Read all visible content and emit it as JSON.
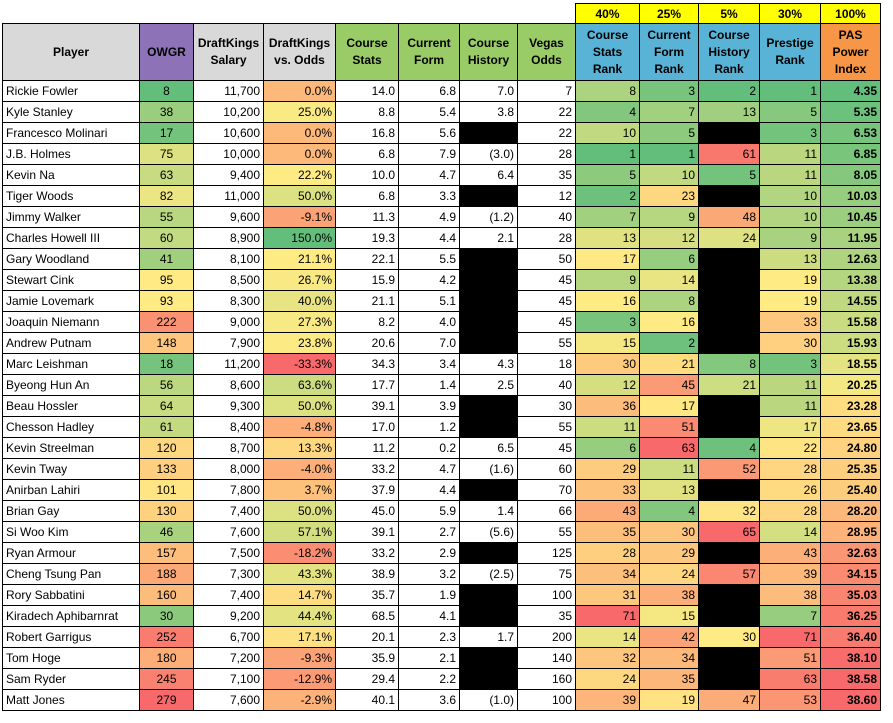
{
  "weights": [
    "40%",
    "25%",
    "5%",
    "30%",
    "100%"
  ],
  "headers": {
    "player": "Player",
    "owgr": "OWGR",
    "salary": "DraftKings Salary",
    "vs_odds": "DraftKings vs. Odds",
    "course_stats": "Course Stats",
    "current_form": "Current Form",
    "course_history": "Course History",
    "vegas_odds": "Vegas Odds",
    "course_stats_rank": "Course Stats Rank",
    "current_form_rank": "Current Form Rank",
    "course_history_rank": "Course History Rank",
    "prestige_rank": "Prestige Rank",
    "pas_index": "PAS Power Index"
  },
  "colors": {
    "green": "#63be7b",
    "yellow": "#ffeb84",
    "red": "#f8696b",
    "header_purple": "#8e72b8",
    "header_green": "#99cc66",
    "header_blue": "#59b3d6",
    "header_orange": "#f79646",
    "weight_yellow": "#ffff00"
  },
  "players": [
    {
      "name": "Rickie Fowler",
      "owgr": "8",
      "salary": "11,700",
      "vs_odds": "0.0%",
      "course_stats": "14.0",
      "current_form": "6.8",
      "course_history": "7.0",
      "vegas_odds": "7",
      "cs_rank": "8",
      "cf_rank": "3",
      "ch_rank": "2",
      "prestige_rank": "1",
      "pas": "4.35"
    },
    {
      "name": "Kyle Stanley",
      "owgr": "38",
      "salary": "10,200",
      "vs_odds": "25.0%",
      "course_stats": "8.8",
      "current_form": "5.4",
      "course_history": "3.8",
      "vegas_odds": "22",
      "cs_rank": "4",
      "cf_rank": "7",
      "ch_rank": "13",
      "prestige_rank": "5",
      "pas": "5.35"
    },
    {
      "name": "Francesco Molinari",
      "owgr": "17",
      "salary": "10,600",
      "vs_odds": "0.0%",
      "course_stats": "16.8",
      "current_form": "5.6",
      "course_history": "",
      "vegas_odds": "22",
      "cs_rank": "10",
      "cf_rank": "5",
      "ch_rank": "",
      "prestige_rank": "3",
      "pas": "6.53"
    },
    {
      "name": "J.B. Holmes",
      "owgr": "75",
      "salary": "10,000",
      "vs_odds": "0.0%",
      "course_stats": "6.8",
      "current_form": "7.9",
      "course_history": "(3.0)",
      "vegas_odds": "28",
      "cs_rank": "1",
      "cf_rank": "1",
      "ch_rank": "61",
      "prestige_rank": "11",
      "pas": "6.85"
    },
    {
      "name": "Kevin Na",
      "owgr": "63",
      "salary": "9,400",
      "vs_odds": "22.2%",
      "course_stats": "10.0",
      "current_form": "4.7",
      "course_history": "6.4",
      "vegas_odds": "35",
      "cs_rank": "5",
      "cf_rank": "10",
      "ch_rank": "5",
      "prestige_rank": "11",
      "pas": "8.05"
    },
    {
      "name": "Tiger Woods",
      "owgr": "82",
      "salary": "11,000",
      "vs_odds": "50.0%",
      "course_stats": "6.8",
      "current_form": "3.3",
      "course_history": "",
      "vegas_odds": "12",
      "cs_rank": "2",
      "cf_rank": "23",
      "ch_rank": "",
      "prestige_rank": "10",
      "pas": "10.03"
    },
    {
      "name": "Jimmy Walker",
      "owgr": "55",
      "salary": "9,600",
      "vs_odds": "-9.1%",
      "course_stats": "11.3",
      "current_form": "4.9",
      "course_history": "(1.2)",
      "vegas_odds": "40",
      "cs_rank": "7",
      "cf_rank": "9",
      "ch_rank": "48",
      "prestige_rank": "10",
      "pas": "10.45"
    },
    {
      "name": "Charles Howell III",
      "owgr": "60",
      "salary": "8,900",
      "vs_odds": "150.0%",
      "course_stats": "19.3",
      "current_form": "4.4",
      "course_history": "2.1",
      "vegas_odds": "28",
      "cs_rank": "13",
      "cf_rank": "12",
      "ch_rank": "24",
      "prestige_rank": "9",
      "pas": "11.95"
    },
    {
      "name": "Gary Woodland",
      "owgr": "41",
      "salary": "8,100",
      "vs_odds": "21.1%",
      "course_stats": "22.1",
      "current_form": "5.5",
      "course_history": "",
      "vegas_odds": "50",
      "cs_rank": "17",
      "cf_rank": "6",
      "ch_rank": "",
      "prestige_rank": "13",
      "pas": "12.63"
    },
    {
      "name": "Stewart Cink",
      "owgr": "95",
      "salary": "8,500",
      "vs_odds": "26.7%",
      "course_stats": "15.9",
      "current_form": "4.2",
      "course_history": "",
      "vegas_odds": "45",
      "cs_rank": "9",
      "cf_rank": "14",
      "ch_rank": "",
      "prestige_rank": "19",
      "pas": "13.38"
    },
    {
      "name": "Jamie Lovemark",
      "owgr": "93",
      "salary": "8,300",
      "vs_odds": "40.0%",
      "course_stats": "21.1",
      "current_form": "5.1",
      "course_history": "",
      "vegas_odds": "45",
      "cs_rank": "16",
      "cf_rank": "8",
      "ch_rank": "",
      "prestige_rank": "19",
      "pas": "14.55"
    },
    {
      "name": "Joaquin Niemann",
      "owgr": "222",
      "salary": "9,000",
      "vs_odds": "27.3%",
      "course_stats": "8.2",
      "current_form": "4.0",
      "course_history": "",
      "vegas_odds": "45",
      "cs_rank": "3",
      "cf_rank": "16",
      "ch_rank": "",
      "prestige_rank": "33",
      "pas": "15.58"
    },
    {
      "name": "Andrew Putnam",
      "owgr": "148",
      "salary": "7,900",
      "vs_odds": "23.8%",
      "course_stats": "20.6",
      "current_form": "7.0",
      "course_history": "",
      "vegas_odds": "55",
      "cs_rank": "15",
      "cf_rank": "2",
      "ch_rank": "",
      "prestige_rank": "30",
      "pas": "15.93"
    },
    {
      "name": "Marc Leishman",
      "owgr": "18",
      "salary": "11,200",
      "vs_odds": "-33.3%",
      "course_stats": "34.3",
      "current_form": "3.4",
      "course_history": "4.3",
      "vegas_odds": "18",
      "cs_rank": "30",
      "cf_rank": "21",
      "ch_rank": "8",
      "prestige_rank": "3",
      "pas": "18.55"
    },
    {
      "name": "Byeong Hun An",
      "owgr": "56",
      "salary": "8,600",
      "vs_odds": "63.6%",
      "course_stats": "17.7",
      "current_form": "1.4",
      "course_history": "2.5",
      "vegas_odds": "40",
      "cs_rank": "12",
      "cf_rank": "45",
      "ch_rank": "21",
      "prestige_rank": "11",
      "pas": "20.25"
    },
    {
      "name": "Beau Hossler",
      "owgr": "64",
      "salary": "9,300",
      "vs_odds": "50.0%",
      "course_stats": "39.1",
      "current_form": "3.9",
      "course_history": "",
      "vegas_odds": "30",
      "cs_rank": "36",
      "cf_rank": "17",
      "ch_rank": "",
      "prestige_rank": "11",
      "pas": "23.28"
    },
    {
      "name": "Chesson Hadley",
      "owgr": "61",
      "salary": "8,400",
      "vs_odds": "-4.8%",
      "course_stats": "17.0",
      "current_form": "1.2",
      "course_history": "",
      "vegas_odds": "55",
      "cs_rank": "11",
      "cf_rank": "51",
      "ch_rank": "",
      "prestige_rank": "17",
      "pas": "23.65"
    },
    {
      "name": "Kevin Streelman",
      "owgr": "120",
      "salary": "8,700",
      "vs_odds": "13.3%",
      "course_stats": "11.2",
      "current_form": "0.2",
      "course_history": "6.5",
      "vegas_odds": "45",
      "cs_rank": "6",
      "cf_rank": "63",
      "ch_rank": "4",
      "prestige_rank": "22",
      "pas": "24.80"
    },
    {
      "name": "Kevin Tway",
      "owgr": "133",
      "salary": "8,000",
      "vs_odds": "-4.0%",
      "course_stats": "33.2",
      "current_form": "4.7",
      "course_history": "(1.6)",
      "vegas_odds": "60",
      "cs_rank": "29",
      "cf_rank": "11",
      "ch_rank": "52",
      "prestige_rank": "28",
      "pas": "25.35"
    },
    {
      "name": "Anirban Lahiri",
      "owgr": "101",
      "salary": "7,800",
      "vs_odds": "3.7%",
      "course_stats": "37.9",
      "current_form": "4.4",
      "course_history": "",
      "vegas_odds": "70",
      "cs_rank": "33",
      "cf_rank": "13",
      "ch_rank": "",
      "prestige_rank": "26",
      "pas": "25.40"
    },
    {
      "name": "Brian Gay",
      "owgr": "130",
      "salary": "7,400",
      "vs_odds": "50.0%",
      "course_stats": "45.0",
      "current_form": "5.9",
      "course_history": "1.4",
      "vegas_odds": "66",
      "cs_rank": "43",
      "cf_rank": "4",
      "ch_rank": "32",
      "prestige_rank": "28",
      "pas": "28.20"
    },
    {
      "name": "Si Woo Kim",
      "owgr": "46",
      "salary": "7,600",
      "vs_odds": "57.1%",
      "course_stats": "39.1",
      "current_form": "2.7",
      "course_history": "(5.6)",
      "vegas_odds": "55",
      "cs_rank": "35",
      "cf_rank": "30",
      "ch_rank": "65",
      "prestige_rank": "14",
      "pas": "28.95"
    },
    {
      "name": "Ryan Armour",
      "owgr": "157",
      "salary": "7,500",
      "vs_odds": "-18.2%",
      "course_stats": "33.2",
      "current_form": "2.9",
      "course_history": "",
      "vegas_odds": "125",
      "cs_rank": "28",
      "cf_rank": "29",
      "ch_rank": "",
      "prestige_rank": "43",
      "pas": "32.63"
    },
    {
      "name": "Cheng Tsung Pan",
      "owgr": "188",
      "salary": "7,300",
      "vs_odds": "43.3%",
      "course_stats": "38.9",
      "current_form": "3.2",
      "course_history": "(2.5)",
      "vegas_odds": "75",
      "cs_rank": "34",
      "cf_rank": "24",
      "ch_rank": "57",
      "prestige_rank": "39",
      "pas": "34.15"
    },
    {
      "name": "Rory Sabbatini",
      "owgr": "160",
      "salary": "7,400",
      "vs_odds": "14.7%",
      "course_stats": "35.7",
      "current_form": "1.9",
      "course_history": "",
      "vegas_odds": "100",
      "cs_rank": "31",
      "cf_rank": "38",
      "ch_rank": "",
      "prestige_rank": "38",
      "pas": "35.03"
    },
    {
      "name": "Kiradech Aphibarnrat",
      "owgr": "30",
      "salary": "9,200",
      "vs_odds": "44.4%",
      "course_stats": "68.5",
      "current_form": "4.1",
      "course_history": "",
      "vegas_odds": "35",
      "cs_rank": "71",
      "cf_rank": "15",
      "ch_rank": "",
      "prestige_rank": "7",
      "pas": "36.25"
    },
    {
      "name": "Robert Garrigus",
      "owgr": "252",
      "salary": "6,700",
      "vs_odds": "17.1%",
      "course_stats": "20.1",
      "current_form": "2.3",
      "course_history": "1.7",
      "vegas_odds": "200",
      "cs_rank": "14",
      "cf_rank": "42",
      "ch_rank": "30",
      "prestige_rank": "71",
      "pas": "36.40"
    },
    {
      "name": "Tom Hoge",
      "owgr": "180",
      "salary": "7,200",
      "vs_odds": "-9.3%",
      "course_stats": "35.9",
      "current_form": "2.1",
      "course_history": "",
      "vegas_odds": "140",
      "cs_rank": "32",
      "cf_rank": "34",
      "ch_rank": "",
      "prestige_rank": "51",
      "pas": "38.10"
    },
    {
      "name": "Sam Ryder",
      "owgr": "245",
      "salary": "7,100",
      "vs_odds": "-12.9%",
      "course_stats": "29.4",
      "current_form": "2.2",
      "course_history": "",
      "vegas_odds": "160",
      "cs_rank": "24",
      "cf_rank": "35",
      "ch_rank": "",
      "prestige_rank": "63",
      "pas": "38.58"
    },
    {
      "name": "Matt Jones",
      "owgr": "279",
      "salary": "7,600",
      "vs_odds": "-2.9%",
      "course_stats": "40.1",
      "current_form": "3.6",
      "course_history": "(1.0)",
      "vegas_odds": "100",
      "cs_rank": "39",
      "cf_rank": "19",
      "ch_rank": "47",
      "prestige_rank": "53",
      "pas": "38.60"
    }
  ]
}
